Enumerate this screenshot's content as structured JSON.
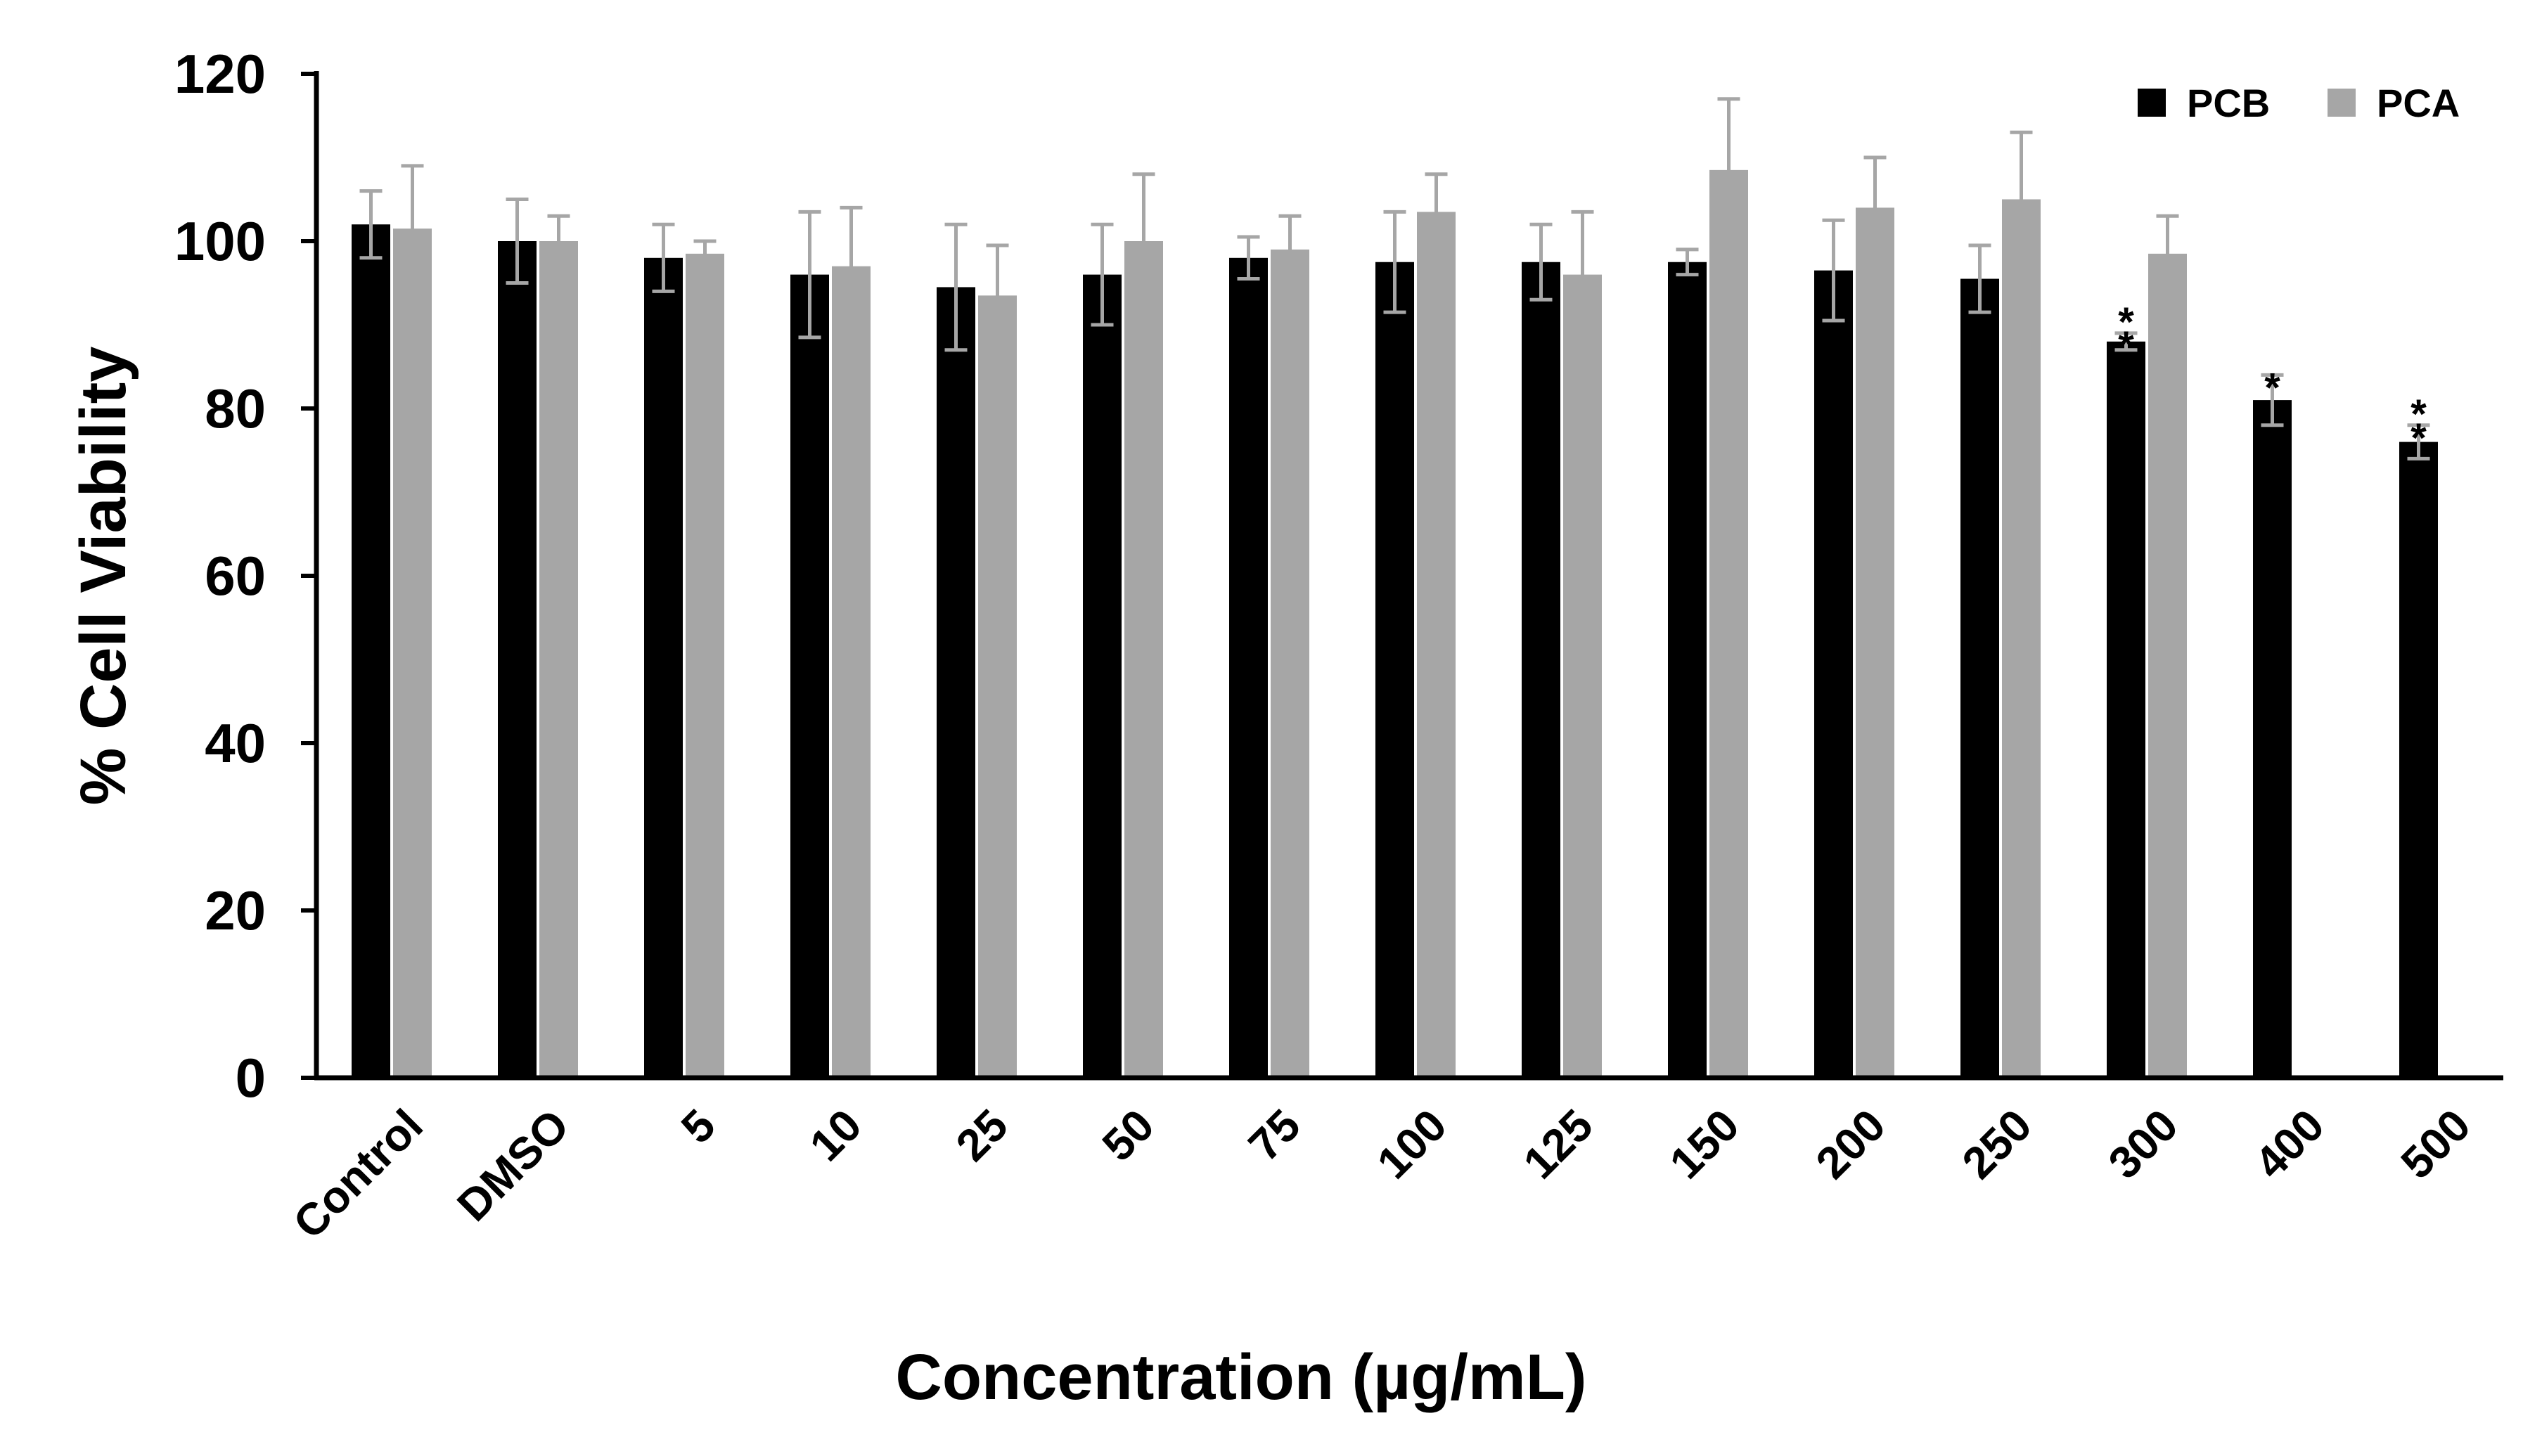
{
  "chart_data": {
    "type": "bar",
    "title": "",
    "xlabel": "Concentration (µg/mL)",
    "ylabel": "% Cell Viability",
    "ylim": [
      0,
      120
    ],
    "yticks": [
      0,
      20,
      40,
      60,
      80,
      100,
      120
    ],
    "categories": [
      "Control",
      "DMSO",
      "5",
      "10",
      "25",
      "50",
      "75",
      "100",
      "125",
      "150",
      "200",
      "250",
      "300",
      "400",
      "500"
    ],
    "series": [
      {
        "name": "PCB",
        "color": "#000000",
        "errorColor": "#a6a6a6",
        "values": [
          102,
          100,
          98,
          96,
          94.5,
          96,
          98,
          97.5,
          97.5,
          97.5,
          96.5,
          95.5,
          88,
          81,
          76
        ],
        "errors": [
          4,
          5,
          4,
          7.5,
          7.5,
          6,
          2.5,
          6,
          4.5,
          1.5,
          6,
          4,
          1,
          3,
          2
        ]
      },
      {
        "name": "PCA",
        "color": "#a6a6a6",
        "errorColor": "#a6a6a6",
        "values": [
          101.5,
          100,
          98.5,
          97,
          93.5,
          100,
          99,
          103.5,
          96,
          108.5,
          104,
          105,
          98.5,
          null,
          null
        ],
        "errors": [
          7.5,
          3,
          1.5,
          7,
          6,
          8,
          4,
          4.5,
          7.5,
          8.5,
          6,
          8,
          4.5,
          null,
          null
        ]
      }
    ],
    "significance": [
      {
        "category": "300",
        "series": "PCB",
        "label": "**"
      },
      {
        "category": "400",
        "series": "PCB",
        "label": "*"
      },
      {
        "category": "500",
        "series": "PCB",
        "label": "**"
      }
    ],
    "legend": {
      "position": "top-right"
    },
    "grid": false
  }
}
